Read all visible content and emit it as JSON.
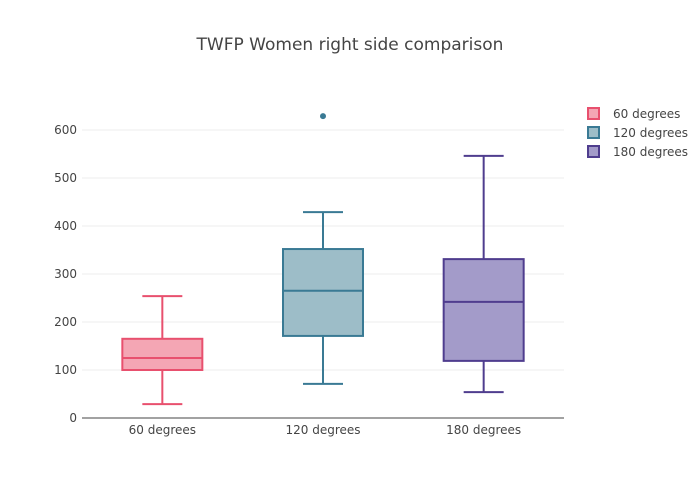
{
  "chart_data": {
    "type": "box",
    "title": "TWFP Women right side comparison",
    "xlabel": "",
    "ylabel": "",
    "ylim": [
      0,
      660
    ],
    "yticks": [
      0,
      100,
      200,
      300,
      400,
      500,
      600
    ],
    "grid": true,
    "legend_position": "top-right",
    "categories": [
      "60 degrees",
      "120 degrees",
      "180 degrees"
    ],
    "series": [
      {
        "name": "60 degrees",
        "min": 29,
        "q1": 100,
        "median": 125,
        "q3": 165,
        "max": 254,
        "outliers": [],
        "line_color": "#e8506e",
        "fill_color": "#f4a6b4"
      },
      {
        "name": "120 degrees",
        "min": 71,
        "q1": 171,
        "median": 265,
        "q3": 352,
        "max": 429,
        "outliers": [
          629
        ],
        "line_color": "#3a7a94",
        "fill_color": "#9dbdc8"
      },
      {
        "name": "180 degrees",
        "min": 54,
        "q1": 119,
        "median": 242,
        "q3": 331,
        "max": 546,
        "outliers": [],
        "line_color": "#4f3d8e",
        "fill_color": "#a39bc9"
      }
    ]
  }
}
